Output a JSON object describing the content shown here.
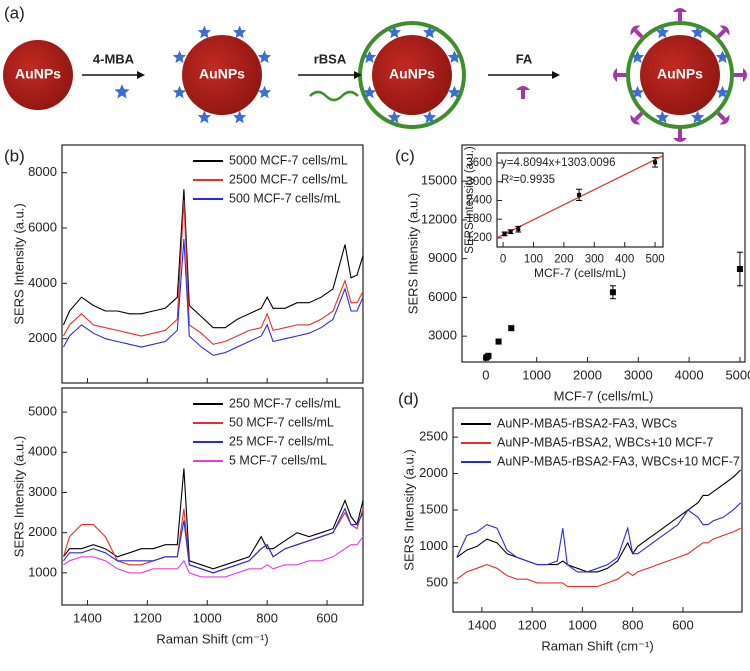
{
  "schematic": {
    "panel_label": "(a)",
    "particle_labels": [
      "AuNPs",
      "AuNPs",
      "AuNPs",
      "AuNPs"
    ],
    "steps": [
      "4-MBA",
      "rBSA",
      "FA"
    ]
  },
  "chart_data": [
    {
      "type": "line",
      "panel_label": "(b)",
      "ylabel": "SERS Intensity (a.u.)",
      "x": [
        1480,
        1460,
        1420,
        1380,
        1340,
        1300,
        1260,
        1220,
        1180,
        1140,
        1100,
        1078,
        1060,
        1020,
        980,
        940,
        900,
        860,
        820,
        800,
        780,
        740,
        700,
        660,
        620,
        580,
        540,
        520,
        500,
        480
      ],
      "xlim": [
        1485,
        480
      ],
      "xticks": [
        1400,
        1200,
        1000,
        800,
        600
      ],
      "xtick_labels": false,
      "ylim": [
        400,
        9000
      ],
      "yticks": [
        2000,
        4000,
        6000,
        8000
      ],
      "legend": "upper right",
      "series": [
        {
          "name": "5000 MCF-7 cells/mL",
          "color": "#000000",
          "values": [
            2500,
            3000,
            3500,
            3200,
            3000,
            3000,
            2900,
            2900,
            3000,
            3100,
            3500,
            7400,
            3200,
            2800,
            2400,
            2400,
            2700,
            2900,
            3100,
            3500,
            3100,
            3100,
            3300,
            3300,
            3500,
            3800,
            5400,
            4200,
            4300,
            5000
          ]
        },
        {
          "name": "2500 MCF-7 cells/mL",
          "color": "#e3302f",
          "values": [
            2100,
            2500,
            2900,
            2500,
            2400,
            2300,
            2200,
            2100,
            2200,
            2300,
            2700,
            7000,
            2500,
            2200,
            1800,
            1900,
            2100,
            2300,
            2400,
            2900,
            2300,
            2400,
            2500,
            2500,
            2700,
            3000,
            4100,
            3300,
            3300,
            3700
          ]
        },
        {
          "name": "500 MCF-7 cells/mL",
          "color": "#2b2bd8",
          "values": [
            1700,
            2100,
            2500,
            2200,
            2000,
            1900,
            1800,
            1700,
            1800,
            1900,
            2300,
            5600,
            2100,
            1700,
            1400,
            1500,
            1700,
            1900,
            2100,
            2500,
            1900,
            2000,
            2100,
            2200,
            2400,
            2700,
            3800,
            3000,
            3000,
            3500
          ]
        }
      ]
    },
    {
      "type": "line",
      "ylabel": "SERS Intensity (a.u.)",
      "xlabel": "Raman Shift (cm⁻¹)",
      "x": [
        1480,
        1460,
        1420,
        1380,
        1340,
        1300,
        1260,
        1220,
        1180,
        1140,
        1100,
        1078,
        1060,
        1020,
        980,
        940,
        900,
        860,
        820,
        800,
        780,
        740,
        700,
        660,
        620,
        580,
        540,
        520,
        500,
        480
      ],
      "xlim": [
        1485,
        480
      ],
      "xticks": [
        1400,
        1200,
        1000,
        800,
        600
      ],
      "ylim": [
        200,
        5600
      ],
      "yticks": [
        1000,
        2000,
        3000,
        4000,
        5000
      ],
      "legend": "upper right",
      "series": [
        {
          "name": "250 MCF-7 cells/mL",
          "color": "#000000",
          "values": [
            1400,
            1600,
            1600,
            1700,
            1600,
            1400,
            1500,
            1600,
            1600,
            1700,
            1700,
            3600,
            1300,
            1200,
            1100,
            1200,
            1300,
            1400,
            1900,
            1600,
            1600,
            1800,
            2000,
            1900,
            2000,
            2100,
            2800,
            2400,
            2200,
            2800
          ]
        },
        {
          "name": "50 MCF-7 cells/mL",
          "color": "#e3302f",
          "values": [
            1400,
            1900,
            2200,
            2200,
            1900,
            1300,
            1200,
            1200,
            1300,
            1400,
            1400,
            2600,
            1200,
            1100,
            1000,
            1100,
            1200,
            1300,
            1600,
            1700,
            1400,
            1600,
            1700,
            1800,
            1900,
            2000,
            2500,
            2200,
            2100,
            2600
          ]
        },
        {
          "name": "25 MCF-7 cells/mL",
          "color": "#2b2bd8",
          "values": [
            1300,
            1500,
            1500,
            1600,
            1500,
            1300,
            1300,
            1300,
            1300,
            1400,
            1400,
            2300,
            1200,
            1100,
            1000,
            1100,
            1200,
            1300,
            1600,
            1700,
            1400,
            1600,
            1700,
            1800,
            1900,
            2000,
            2600,
            2200,
            2200,
            2500
          ]
        },
        {
          "name": "5 MCF-7 cells/mL",
          "color": "#e040e0",
          "values": [
            1200,
            1300,
            1400,
            1400,
            1300,
            1100,
            1000,
            1000,
            1100,
            1100,
            1100,
            1300,
            1000,
            900,
            900,
            900,
            1000,
            1100,
            1100,
            1200,
            1100,
            1200,
            1200,
            1300,
            1300,
            1400,
            1600,
            1700,
            1700,
            1900
          ]
        }
      ]
    },
    {
      "type": "scatter",
      "panel_label": "(c)",
      "ylabel": "SERS Intensity (a.u.)",
      "xlabel": "MCF-7 (cells/mL)",
      "x": [
        5,
        25,
        50,
        250,
        500,
        2500,
        5000
      ],
      "values": [
        1330,
        1400,
        1480,
        2580,
        3620,
        6400,
        8200
      ],
      "errors": [
        60,
        60,
        90,
        180,
        150,
        500,
        1300
      ],
      "color": "#000000",
      "xlim": [
        -470,
        5100
      ],
      "xticks": [
        0,
        1000,
        2000,
        3000,
        4000,
        5000
      ],
      "ylim": [
        1000,
        17800
      ],
      "yticks": [
        3000,
        6000,
        9000,
        12000,
        15000
      ],
      "inset": {
        "xlabel": "MCF-7 (cells/mL)",
        "ylabel": "SERS Intensity (a.u.)",
        "xlim": [
          -20,
          526
        ],
        "xticks": [
          0,
          100,
          200,
          300,
          400,
          500
        ],
        "ylim": [
          910,
          3920
        ],
        "yticks": [
          1200,
          1800,
          2400,
          3000,
          3600
        ],
        "equation": "y=4.8094x+1303.0096",
        "r_squared": "R²=0.9935",
        "fit_slope": 4.8094,
        "fit_intercept": 1303.0096,
        "fit_color": "#e3302f"
      }
    },
    {
      "type": "line",
      "panel_label": "(d)",
      "ylabel": "SERS Intensity (a.u.)",
      "xlabel": "Raman Shift (cm⁻¹)",
      "x": [
        1500,
        1460,
        1420,
        1380,
        1340,
        1300,
        1260,
        1220,
        1180,
        1140,
        1100,
        1078,
        1060,
        1020,
        980,
        940,
        900,
        860,
        820,
        800,
        780,
        740,
        700,
        660,
        620,
        580,
        540,
        520,
        500,
        480,
        440,
        400,
        370
      ],
      "xlim": [
        1515,
        365
      ],
      "xticks": [
        1400,
        1200,
        1000,
        800,
        600
      ],
      "ylim": [
        100,
        2900
      ],
      "yticks": [
        500,
        1000,
        1500,
        2000,
        2500
      ],
      "legend": "upper left",
      "series": [
        {
          "name": "AuNP-MBA5-rBSA2-FA3, WBCs",
          "color": "#000000",
          "values": [
            850,
            950,
            1000,
            1100,
            1050,
            900,
            850,
            800,
            750,
            750,
            750,
            800,
            750,
            700,
            650,
            650,
            700,
            800,
            1050,
            900,
            1000,
            1100,
            1200,
            1300,
            1400,
            1500,
            1600,
            1700,
            1700,
            1750,
            1850,
            1950,
            2050
          ]
        },
        {
          "name": "AuNP-MBA5-rBSA2, WBCs+10 MCF-7",
          "color": "#e3302f",
          "values": [
            550,
            650,
            700,
            750,
            700,
            600,
            550,
            550,
            500,
            500,
            500,
            500,
            450,
            450,
            450,
            450,
            500,
            550,
            650,
            600,
            650,
            700,
            750,
            800,
            850,
            900,
            1000,
            1050,
            1050,
            1100,
            1150,
            1200,
            1250
          ]
        },
        {
          "name": "AuNP-MBA5-rBSA2-FA3, WBCs+10 MCF-7",
          "color": "#2b2bd8",
          "values": [
            850,
            1150,
            1200,
            1300,
            1250,
            950,
            850,
            800,
            750,
            750,
            800,
            1250,
            750,
            650,
            650,
            700,
            750,
            850,
            1250,
            900,
            900,
            1000,
            1100,
            1200,
            1300,
            1500,
            1400,
            1300,
            1300,
            1350,
            1400,
            1500,
            1600
          ]
        }
      ]
    }
  ]
}
